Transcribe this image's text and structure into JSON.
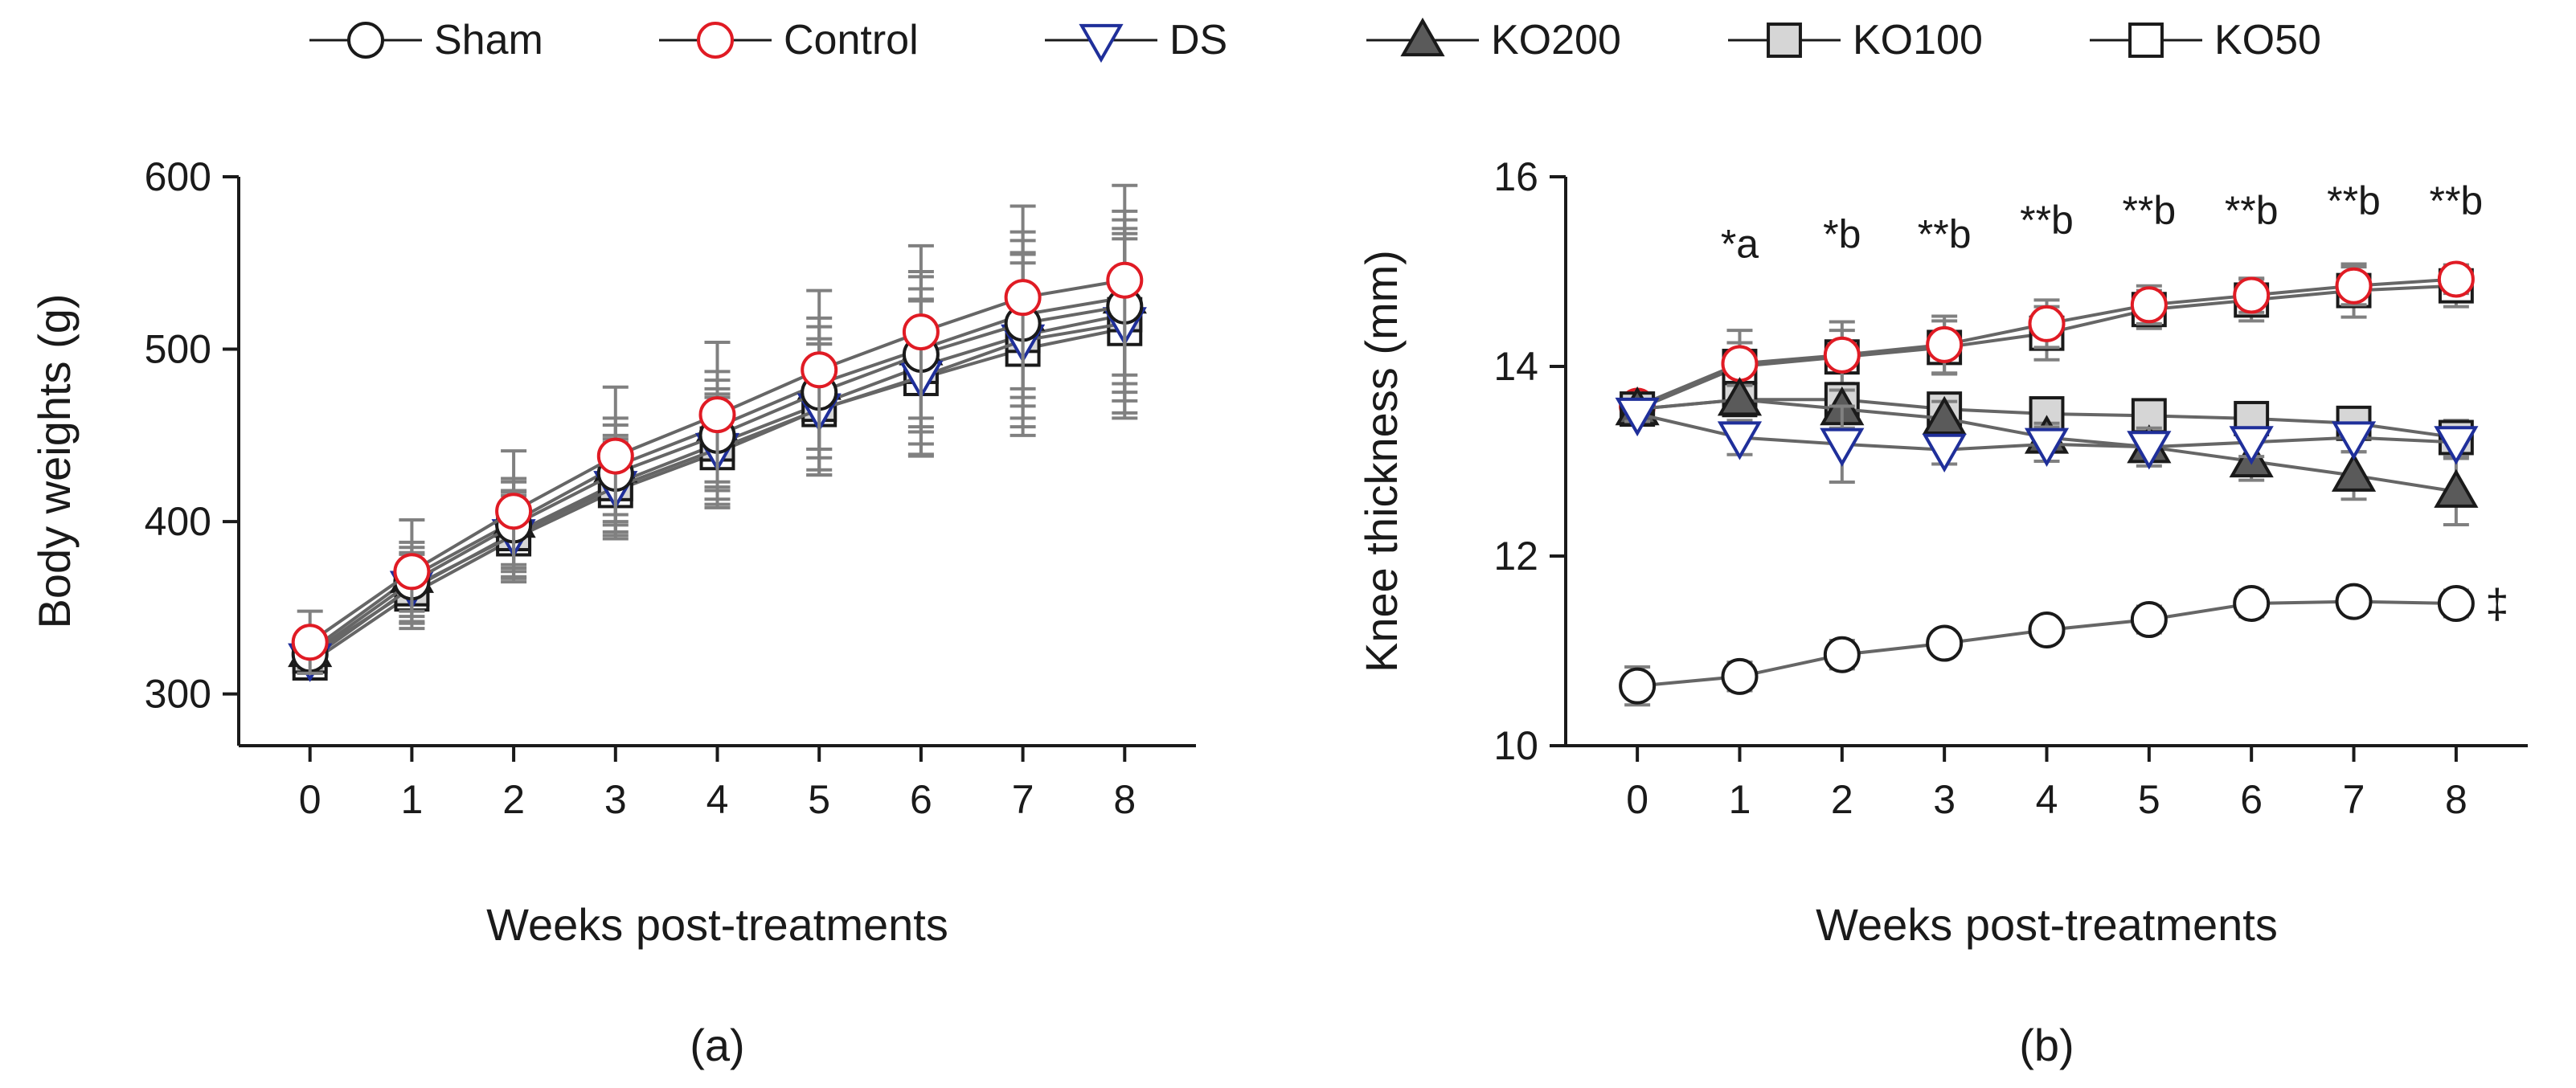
{
  "legend": [
    {
      "label": "Sham",
      "marker": "circle",
      "stroke": "#1a1a1a",
      "fill": "#ffffff"
    },
    {
      "label": "Control",
      "marker": "circle",
      "stroke": "#e01b24",
      "fill": "#ffffff"
    },
    {
      "label": "DS",
      "marker": "triangle-down",
      "stroke": "#1f2f9a",
      "fill": "#ffffff"
    },
    {
      "label": "KO200",
      "marker": "triangle-up",
      "stroke": "#1a1a1a",
      "fill": "#5a5a5a"
    },
    {
      "label": "KO100",
      "marker": "square",
      "stroke": "#1a1a1a",
      "fill": "#d6d6d6"
    },
    {
      "label": "KO50",
      "marker": "square",
      "stroke": "#1a1a1a",
      "fill": "#ffffff"
    }
  ],
  "colors": {
    "line": "#666666",
    "errorbar": "#808080",
    "axis": "#1a1a1a"
  },
  "chart_data": [
    {
      "type": "line",
      "panel_label": "(a)",
      "xlabel": "Weeks post-treatments",
      "ylabel": "Body weights (g)",
      "x": [
        0,
        1,
        2,
        3,
        4,
        5,
        6,
        7,
        8
      ],
      "xlim": [
        -0.7,
        8.7
      ],
      "ylim": [
        270,
        600
      ],
      "yticks": [
        300,
        400,
        500,
        600
      ],
      "series": [
        {
          "name": "KO50",
          "values": [
            318,
            358,
            390,
            418,
            440,
            465,
            483,
            500,
            512
          ],
          "err": [
            8,
            20,
            25,
            28,
            32,
            38,
            45,
            50,
            52
          ]
        },
        {
          "name": "KO100",
          "values": [
            322,
            361,
            393,
            422,
            445,
            468,
            490,
            508,
            520
          ],
          "err": [
            8,
            20,
            25,
            28,
            32,
            38,
            45,
            48,
            50
          ]
        },
        {
          "name": "KO200",
          "values": [
            325,
            368,
            400,
            432,
            455,
            480,
            500,
            520,
            530
          ],
          "err": [
            8,
            20,
            25,
            28,
            32,
            38,
            45,
            48,
            50
          ]
        },
        {
          "name": "DS",
          "values": [
            320,
            362,
            392,
            420,
            442,
            465,
            484,
            505,
            515
          ],
          "err": [
            8,
            20,
            25,
            28,
            32,
            38,
            45,
            50,
            52
          ]
        },
        {
          "name": "Sham",
          "values": [
            323,
            365,
            398,
            428,
            450,
            475,
            497,
            515,
            525
          ],
          "err": [
            8,
            20,
            25,
            28,
            32,
            38,
            45,
            48,
            50
          ]
        },
        {
          "name": "Control",
          "values": [
            330,
            371,
            406,
            438,
            462,
            488,
            510,
            530,
            540
          ],
          "err": [
            18,
            30,
            35,
            40,
            42,
            46,
            50,
            53,
            55
          ]
        }
      ]
    },
    {
      "type": "line",
      "panel_label": "(b)",
      "xlabel": "Weeks post-treatments",
      "ylabel": "Knee thickness (mm)",
      "x": [
        0,
        1,
        2,
        3,
        4,
        5,
        6,
        7,
        8
      ],
      "xlim": [
        -0.7,
        8.7
      ],
      "ylim": [
        10,
        16
      ],
      "yticks": [
        10,
        12,
        14,
        16
      ],
      "series": [
        {
          "name": "Sham",
          "values": [
            10.63,
            10.73,
            10.96,
            11.08,
            11.22,
            11.33,
            11.5,
            11.52,
            11.5
          ],
          "err": [
            0.2,
            0.15,
            0.15,
            0.12,
            0.1,
            0.14,
            0.14,
            0.12,
            0.14
          ]
        },
        {
          "name": "KO50",
          "values": [
            13.55,
            14.0,
            14.1,
            14.2,
            14.35,
            14.6,
            14.7,
            14.8,
            14.85
          ],
          "err": [
            0.1,
            0.25,
            0.28,
            0.28,
            0.28,
            0.2,
            0.22,
            0.28,
            0.22
          ]
        },
        {
          "name": "Control",
          "values": [
            13.58,
            14.03,
            14.12,
            14.23,
            14.45,
            14.65,
            14.75,
            14.85,
            14.92
          ],
          "err": [
            0.1,
            0.35,
            0.35,
            0.3,
            0.25,
            0.2,
            0.18,
            0.2,
            0.15
          ]
        },
        {
          "name": "KO100",
          "values": [
            13.55,
            13.65,
            13.65,
            13.55,
            13.5,
            13.48,
            13.45,
            13.4,
            13.25
          ],
          "err": [
            0.1,
            0.1,
            0.15,
            0.15,
            0.15,
            0.15,
            0.15,
            0.15,
            0.18
          ]
        },
        {
          "name": "KO200",
          "values": [
            13.55,
            13.65,
            13.55,
            13.45,
            13.25,
            13.15,
            13.0,
            12.85,
            12.68
          ],
          "err": [
            0.1,
            0.15,
            0.2,
            0.18,
            0.15,
            0.15,
            0.2,
            0.25,
            0.35
          ]
        },
        {
          "name": "DS",
          "values": [
            13.5,
            13.25,
            13.18,
            13.12,
            13.18,
            13.15,
            13.2,
            13.25,
            13.2
          ],
          "err": [
            0.08,
            0.18,
            0.4,
            0.15,
            0.18,
            0.2,
            0.15,
            0.15,
            0.15
          ]
        }
      ],
      "annotations": [
        {
          "x": 1,
          "text": "*a",
          "y": 15.15
        },
        {
          "x": 2,
          "text": "*b",
          "y": 15.25
        },
        {
          "x": 3,
          "text": "**b",
          "y": 15.25
        },
        {
          "x": 4,
          "text": "**b",
          "y": 15.4
        },
        {
          "x": 5,
          "text": "**b",
          "y": 15.5
        },
        {
          "x": 6,
          "text": "**b",
          "y": 15.5
        },
        {
          "x": 7,
          "text": "**b",
          "y": 15.6
        },
        {
          "x": 8,
          "text": "**b",
          "y": 15.6
        }
      ],
      "side_mark": {
        "text": "‡",
        "x": 8.4,
        "y": 11.5
      }
    }
  ]
}
